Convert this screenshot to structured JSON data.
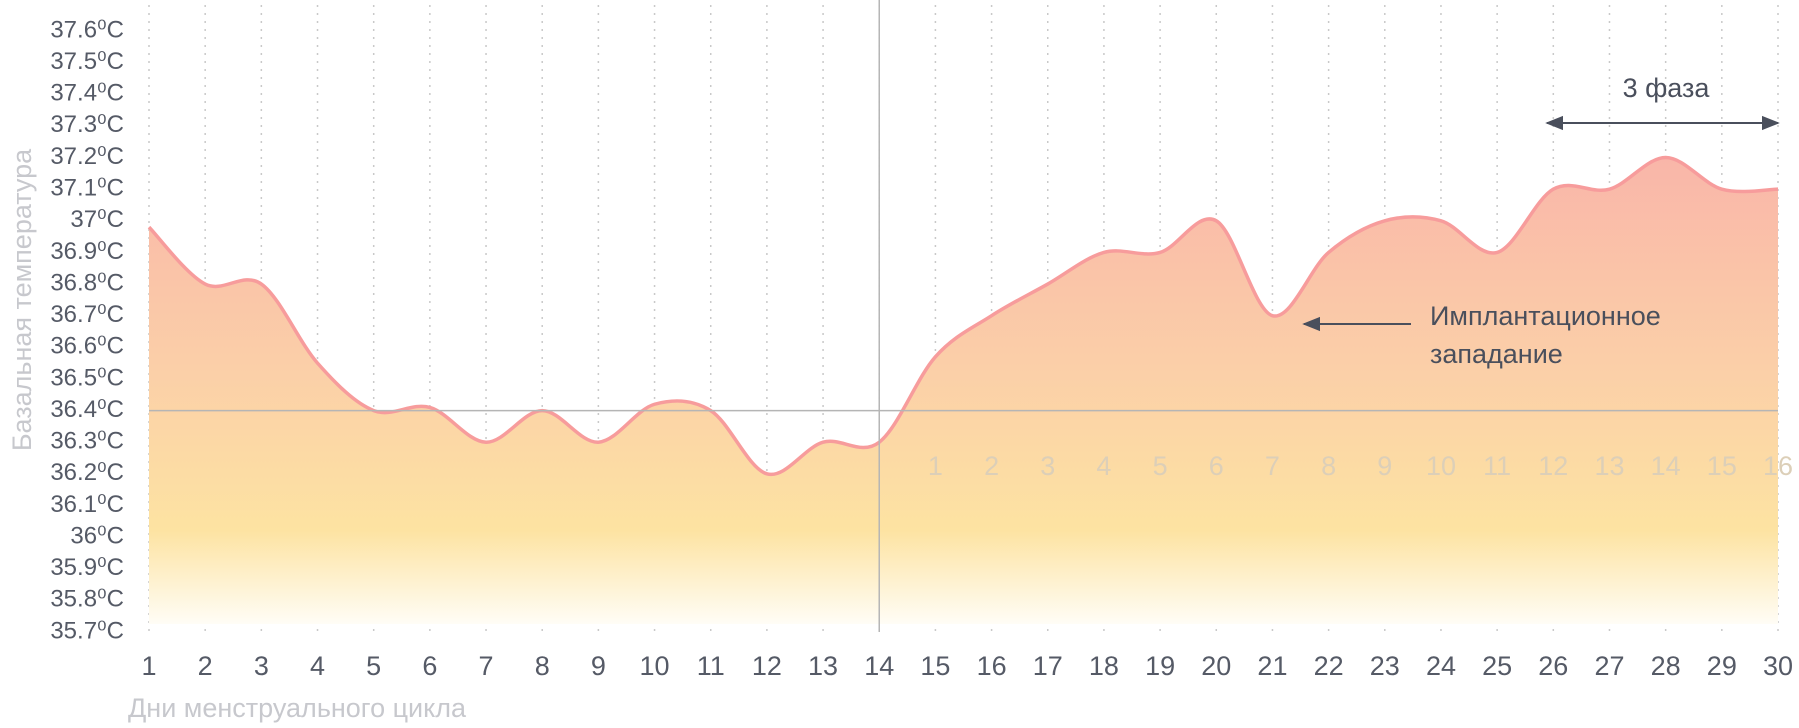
{
  "chart_data": {
    "type": "line",
    "y_label": "Базальная температура",
    "x_label": "Дни менструального цикла",
    "categories": [
      "1",
      "2",
      "3",
      "4",
      "5",
      "6",
      "7",
      "8",
      "9",
      "10",
      "11",
      "12",
      "13",
      "14",
      "15",
      "16",
      "17",
      "18",
      "19",
      "20",
      "21",
      "22",
      "23",
      "24",
      "25",
      "26",
      "27",
      "28",
      "29",
      "30"
    ],
    "series": [
      {
        "name": "Базальная температура",
        "color": "#f79c9c",
        "values": [
          36.98,
          36.8,
          36.8,
          36.55,
          36.4,
          36.41,
          36.3,
          36.4,
          36.3,
          36.42,
          36.4,
          36.2,
          36.3,
          36.3,
          36.57,
          36.7,
          36.8,
          36.9,
          36.9,
          37.0,
          36.7,
          36.9,
          37.0,
          37.0,
          36.9,
          37.1,
          37.1,
          37.2,
          37.1,
          37.1
        ]
      }
    ],
    "phase_day_labels": [
      "1",
      "2",
      "3",
      "4",
      "5",
      "6",
      "7",
      "8",
      "9",
      "10",
      "11",
      "12",
      "13",
      "14",
      "15",
      "16"
    ],
    "reference_line": 36.4,
    "divider_day": "14",
    "ylim": [
      35.7,
      37.6
    ],
    "yticks": [
      {
        "value": 35.7,
        "label": "35.7⁰C"
      },
      {
        "value": 35.8,
        "label": "35.8⁰C"
      },
      {
        "value": 35.9,
        "label": "35.9⁰C"
      },
      {
        "value": 36.0,
        "label": "36⁰C"
      },
      {
        "value": 36.1,
        "label": "36.1⁰C"
      },
      {
        "value": 36.2,
        "label": "36.2⁰C"
      },
      {
        "value": 36.3,
        "label": "36.3⁰C"
      },
      {
        "value": 36.4,
        "label": "36.4⁰C"
      },
      {
        "value": 36.5,
        "label": "36.5⁰C"
      },
      {
        "value": 36.6,
        "label": "36.6⁰C"
      },
      {
        "value": 36.7,
        "label": "36.7⁰C"
      },
      {
        "value": 36.8,
        "label": "36.8⁰C"
      },
      {
        "value": 36.9,
        "label": "36.9⁰C"
      },
      {
        "value": 37.0,
        "label": "37⁰C"
      },
      {
        "value": 37.1,
        "label": "37.1⁰C"
      },
      {
        "value": 37.2,
        "label": "37.2⁰C"
      },
      {
        "value": 37.3,
        "label": "37.3⁰C"
      },
      {
        "value": 37.4,
        "label": "37.4⁰C"
      },
      {
        "value": 37.5,
        "label": "37.5⁰C"
      },
      {
        "value": 37.6,
        "label": "37.6⁰C"
      }
    ],
    "annotations": {
      "phase": "3 фаза",
      "implantation": [
        "Имплантационное",
        "западание"
      ]
    }
  }
}
